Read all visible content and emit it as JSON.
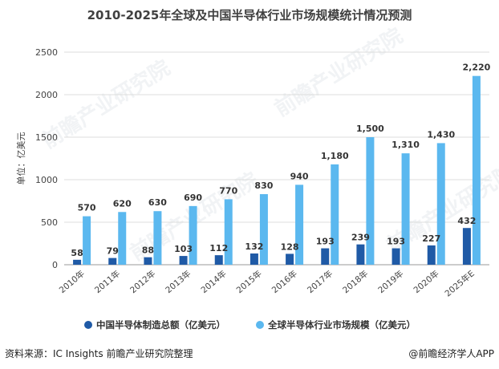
{
  "title": "2010-2025年全球及中国半导体行业市场规模统计情况预测",
  "source": "资料来源：IC Insights 前瞻产业研究院整理",
  "brand": "@前瞻经济学人APP",
  "watermark": "前瞻产业研究院",
  "chart_data": {
    "type": "bar",
    "ylabel": "单位：亿美元",
    "ylim": [
      0,
      2500
    ],
    "yticks": [
      0,
      500,
      1000,
      1500,
      2000,
      2500
    ],
    "grid": true,
    "legend_position": "bottom",
    "categories": [
      "2010年",
      "2011年",
      "2012年",
      "2013年",
      "2014年",
      "2015年",
      "2016年",
      "2017年",
      "2018年",
      "2019年",
      "2020年",
      "2025年E"
    ],
    "series": [
      {
        "name": "中国半导体制造总额（亿美元）",
        "color": "#1f5aa6",
        "values": [
          58,
          79,
          88,
          103,
          112,
          132,
          128,
          193,
          239,
          193,
          227,
          432
        ],
        "labels": [
          "58",
          "79",
          "88",
          "103",
          "112",
          "132",
          "128",
          "193",
          "239",
          "193",
          "227",
          "432"
        ]
      },
      {
        "name": "全球半导体行业市场规模（亿美元）",
        "color": "#5bb8ef",
        "values": [
          570,
          620,
          630,
          690,
          770,
          830,
          940,
          1180,
          1500,
          1310,
          1430,
          2220
        ],
        "labels": [
          "570",
          "620",
          "630",
          "690",
          "770",
          "830",
          "940",
          "1,180",
          "1,500",
          "1,310",
          "1,430",
          "2,220"
        ]
      }
    ]
  }
}
